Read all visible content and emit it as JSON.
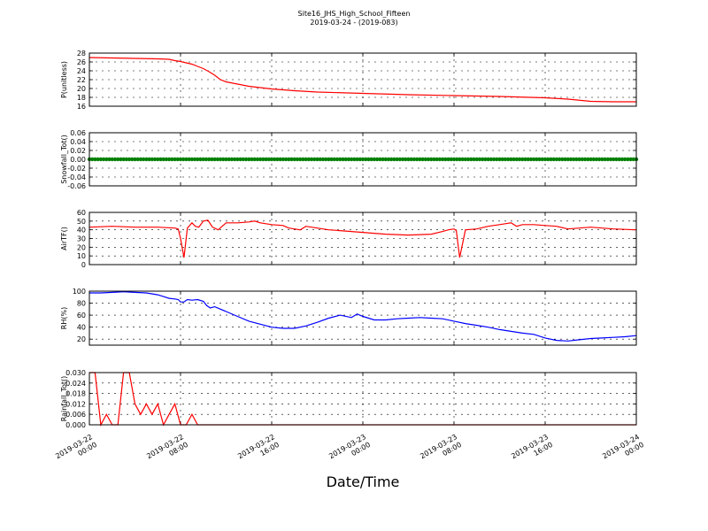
{
  "figure": {
    "title_line1": "Site16_JHS_High_School_Fifteen",
    "title_line2": "2019-03-24 - (2019-083)",
    "xlabel": "Date/Time",
    "x_ticks": [
      {
        "line1": "2019-03-22",
        "line2": "00:00"
      },
      {
        "line1": "2019-03-22",
        "line2": "08:00"
      },
      {
        "line1": "2019-03-22",
        "line2": "16:00"
      },
      {
        "line1": "2019-03-23",
        "line2": "00:00"
      },
      {
        "line1": "2019-03-23",
        "line2": "08:00"
      },
      {
        "line1": "2019-03-23",
        "line2": "16:00"
      },
      {
        "line1": "2019-03-24",
        "line2": "00:00"
      }
    ]
  },
  "chart_data": [
    {
      "type": "line",
      "ylabel": "P(unitless)",
      "ylim": [
        16,
        28
      ],
      "yticks": [
        "16",
        "18",
        "20",
        "22",
        "24",
        "26",
        "28"
      ],
      "xlim": [
        "2019-03-22 00:00",
        "2019-03-24 00:00"
      ],
      "grid": true,
      "series": [
        {
          "color": "#ff0000",
          "x_hours": [
            0,
            2,
            4,
            6,
            7,
            7.5,
            8,
            8.5,
            9,
            9.5,
            10,
            10.5,
            11,
            11.5,
            12,
            13,
            14,
            16,
            18,
            20,
            24,
            28,
            32,
            36,
            40,
            42,
            44,
            46,
            48
          ],
          "y": [
            27.0,
            26.9,
            26.8,
            26.7,
            26.6,
            26.3,
            26.1,
            25.8,
            25.5,
            25.0,
            24.5,
            23.8,
            23.0,
            22.0,
            21.5,
            21.0,
            20.5,
            19.9,
            19.5,
            19.2,
            18.9,
            18.6,
            18.4,
            18.2,
            17.9,
            17.6,
            17.1,
            17.0,
            17.0
          ]
        }
      ]
    },
    {
      "type": "scatter",
      "ylabel": "Snowfall_Tot()",
      "ylim": [
        -0.06,
        0.06
      ],
      "yticks": [
        "-0.06",
        "-0.04",
        "-0.02",
        "0.00",
        "0.02",
        "0.04",
        "0.06"
      ],
      "xlim": [
        "2019-03-22 00:00",
        "2019-03-24 00:00"
      ],
      "grid": true,
      "series": [
        {
          "color": "#007f00",
          "x_range_hours": [
            0,
            48
          ],
          "constant_value": 0.0
        }
      ]
    },
    {
      "type": "line",
      "ylabel": "AirTF()",
      "ylim": [
        0,
        60
      ],
      "yticks": [
        "0",
        "10",
        "20",
        "30",
        "40",
        "50",
        "60"
      ],
      "xlim": [
        "2019-03-22 00:00",
        "2019-03-24 00:00"
      ],
      "grid": true,
      "series": [
        {
          "color": "#ff0000",
          "x_hours": [
            0,
            2,
            4,
            6,
            7.5,
            7.8,
            8.0,
            8.3,
            8.6,
            9.0,
            9.3,
            9.6,
            10.0,
            10.4,
            10.8,
            11.3,
            12,
            13,
            14,
            14.5,
            15,
            16,
            17,
            17.5,
            18,
            18.5,
            19,
            20,
            21,
            22,
            24,
            26,
            28,
            30,
            31,
            31.5,
            32,
            32.2,
            32.5,
            33,
            34,
            35,
            36,
            36.5,
            37,
            37.5,
            38,
            39,
            40,
            41,
            42,
            44,
            46,
            48
          ],
          "y": [
            43,
            44,
            43,
            43,
            42,
            41,
            30,
            8,
            42,
            48,
            44,
            43,
            50,
            51,
            43,
            40,
            48,
            48,
            49,
            50,
            48,
            46,
            45,
            42,
            41,
            40,
            44,
            42,
            40,
            39,
            37,
            35,
            34,
            35,
            38,
            40,
            41,
            39,
            8,
            40,
            41,
            44,
            46,
            47,
            48,
            44,
            46,
            46,
            45,
            44,
            41,
            43,
            41,
            40
          ]
        }
      ]
    },
    {
      "type": "line",
      "ylabel": "RH(%)",
      "ylim": [
        10,
        100
      ],
      "yticks": [
        "20",
        "40",
        "60",
        "80",
        "100"
      ],
      "xlim": [
        "2019-03-22 00:00",
        "2019-03-24 00:00"
      ],
      "grid": true,
      "series": [
        {
          "color": "#0000ff",
          "x_hours": [
            0,
            1,
            2,
            3,
            4,
            5,
            6,
            6.5,
            7,
            7.5,
            7.8,
            8.0,
            8.3,
            8.6,
            9.0,
            9.5,
            10,
            10.3,
            10.6,
            11,
            11.5,
            12,
            13,
            14,
            15,
            16,
            17,
            18,
            19,
            20,
            21,
            22,
            23,
            23.5,
            24,
            25,
            26,
            27,
            28,
            29,
            30,
            31,
            32,
            33,
            34,
            35,
            36,
            37,
            38,
            39,
            40,
            41,
            42,
            43,
            44,
            45,
            46,
            47,
            48
          ],
          "y": [
            97,
            97,
            98,
            99,
            98,
            97,
            94,
            91,
            88,
            87,
            86,
            82,
            82,
            86,
            85,
            86,
            83,
            76,
            72,
            74,
            70,
            66,
            58,
            50,
            45,
            40,
            38,
            38,
            42,
            48,
            55,
            60,
            56,
            62,
            58,
            52,
            52,
            54,
            55,
            56,
            55,
            54,
            50,
            46,
            43,
            40,
            36,
            33,
            30,
            28,
            22,
            18,
            17,
            19,
            21,
            22,
            23,
            24,
            26
          ]
        }
      ]
    },
    {
      "type": "line",
      "ylabel": "Rainfall_Tot()",
      "ylim": [
        0.0,
        0.03
      ],
      "yticks": [
        "0.000",
        "0.006",
        "0.012",
        "0.018",
        "0.024",
        "0.030"
      ],
      "xlim": [
        "2019-03-22 00:00",
        "2019-03-24 00:00"
      ],
      "grid": true,
      "series": [
        {
          "color": "#ff0000",
          "x_hours": [
            0,
            0.5,
            1,
            1.5,
            2,
            2.5,
            3,
            3.5,
            4,
            4.5,
            5,
            5.5,
            6,
            6.5,
            7,
            7.5,
            8,
            8.5,
            9,
            9.5,
            10,
            10.5,
            11,
            48
          ],
          "y": [
            0.03,
            0.03,
            0.0,
            0.006,
            0.0,
            0.0,
            0.03,
            0.03,
            0.012,
            0.006,
            0.012,
            0.006,
            0.012,
            0.0,
            0.006,
            0.012,
            0.0,
            0.0,
            0.006,
            0.0,
            0.0,
            0.0,
            0.0,
            0.0
          ]
        }
      ]
    }
  ]
}
